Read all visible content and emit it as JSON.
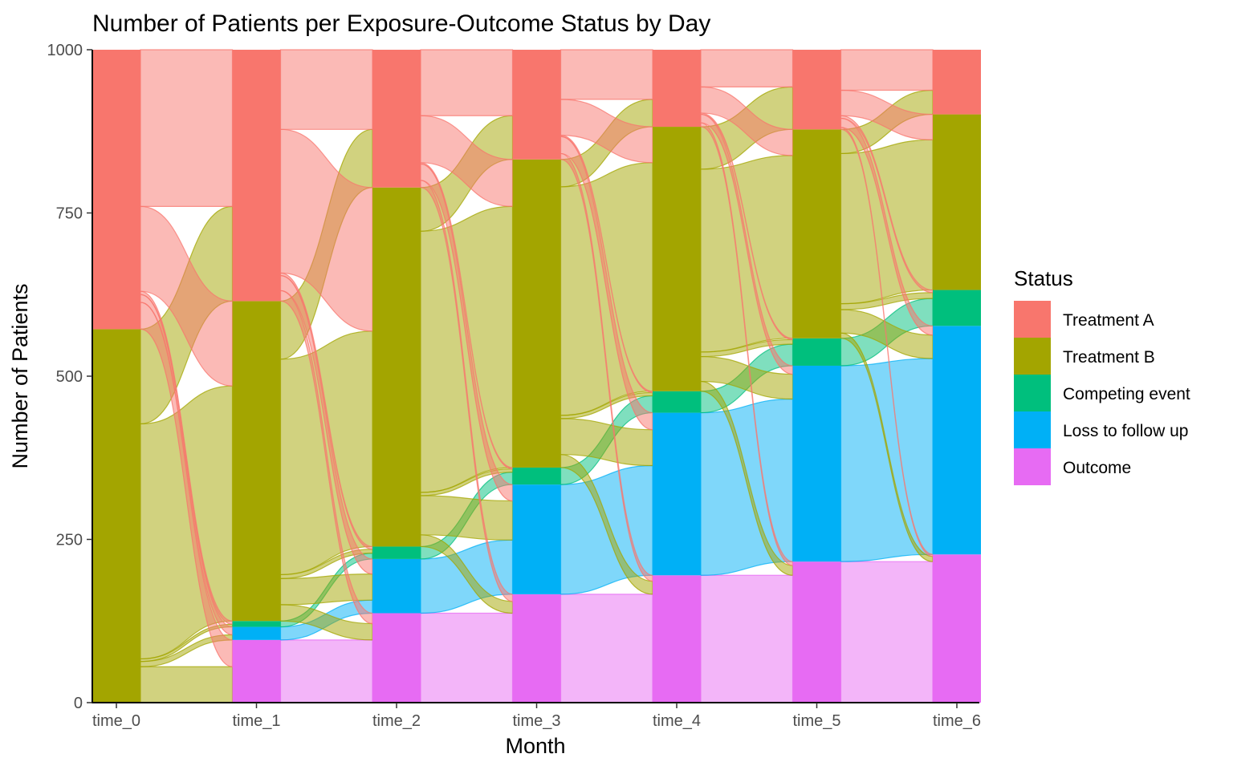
{
  "chart_data": {
    "type": "alluvial",
    "title": "Number of Patients per Exposure-Outcome Status by Day",
    "xlabel": "Month",
    "ylabel": "Number of Patients",
    "ylim": [
      0,
      1000
    ],
    "yticks": [
      "0",
      "250",
      "500",
      "750",
      "1000"
    ],
    "categories": [
      "time_0",
      "time_1",
      "time_2",
      "time_3",
      "time_4",
      "time_5",
      "time_6"
    ],
    "legend": {
      "title": "Status",
      "position": "right",
      "entries": [
        "Treatment A",
        "Treatment B",
        "Competing event",
        "Loss to follow up",
        "Outcome"
      ]
    },
    "colors": {
      "Treatment A": "#F8766D",
      "Treatment B": "#A3A500",
      "Competing event": "#00BF7D",
      "Loss to follow up": "#00B0F6",
      "Outcome": "#E76BF3"
    },
    "series": [
      {
        "name": "Outcome",
        "values": [
          0,
          96,
          137,
          166,
          195,
          216,
          227
        ]
      },
      {
        "name": "Loss to follow up",
        "values": [
          0,
          20,
          83,
          168,
          249,
          300,
          350
        ]
      },
      {
        "name": "Competing event",
        "values": [
          0,
          9,
          19,
          26,
          33,
          42,
          55
        ]
      },
      {
        "name": "Treatment B",
        "values": [
          572,
          490,
          550,
          472,
          405,
          320,
          269
        ]
      },
      {
        "name": "Treatment A",
        "values": [
          428,
          385,
          211,
          168,
          118,
          122,
          99
        ]
      }
    ],
    "flows": [
      {
        "from": "time_0",
        "to": "time_1",
        "pairs": [
          [
            "Treatment B",
            "Outcome",
            55
          ],
          [
            "Treatment B",
            "Loss to follow up",
            8
          ],
          [
            "Treatment B",
            "Competing event",
            4
          ],
          [
            "Treatment B",
            "Treatment B",
            360
          ],
          [
            "Treatment B",
            "Treatment A",
            145
          ],
          [
            "Treatment A",
            "Outcome",
            41
          ],
          [
            "Treatment A",
            "Loss to follow up",
            12
          ],
          [
            "Treatment A",
            "Competing event",
            5
          ],
          [
            "Treatment A",
            "Treatment B",
            130
          ],
          [
            "Treatment A",
            "Treatment A",
            240
          ]
        ]
      },
      {
        "from": "time_1",
        "to": "time_2",
        "pairs": [
          [
            "Outcome",
            "Outcome",
            96
          ],
          [
            "Loss to follow up",
            "Loss to follow up",
            20
          ],
          [
            "Competing event",
            "Competing event",
            9
          ],
          [
            "Treatment B",
            "Outcome",
            25
          ],
          [
            "Treatment B",
            "Loss to follow up",
            40
          ],
          [
            "Treatment B",
            "Competing event",
            6
          ],
          [
            "Treatment B",
            "Treatment B",
            330
          ],
          [
            "Treatment B",
            "Treatment A",
            89
          ],
          [
            "Treatment A",
            "Outcome",
            16
          ],
          [
            "Treatment A",
            "Loss to follow up",
            23
          ],
          [
            "Treatment A",
            "Competing event",
            4
          ],
          [
            "Treatment A",
            "Treatment B",
            220
          ],
          [
            "Treatment A",
            "Treatment A",
            122
          ]
        ]
      },
      {
        "from": "time_2",
        "to": "time_3",
        "pairs": [
          [
            "Outcome",
            "Outcome",
            137
          ],
          [
            "Loss to follow up",
            "Loss to follow up",
            83
          ],
          [
            "Competing event",
            "Competing event",
            19
          ],
          [
            "Treatment B",
            "Outcome",
            18
          ],
          [
            "Treatment B",
            "Loss to follow up",
            60
          ],
          [
            "Treatment B",
            "Competing event",
            5
          ],
          [
            "Treatment B",
            "Treatment B",
            400
          ],
          [
            "Treatment B",
            "Treatment A",
            67
          ],
          [
            "Treatment A",
            "Outcome",
            11
          ],
          [
            "Treatment A",
            "Loss to follow up",
            25
          ],
          [
            "Treatment A",
            "Competing event",
            2
          ],
          [
            "Treatment A",
            "Treatment B",
            72
          ],
          [
            "Treatment A",
            "Treatment A",
            101
          ]
        ]
      },
      {
        "from": "time_3",
        "to": "time_4",
        "pairs": [
          [
            "Outcome",
            "Outcome",
            166
          ],
          [
            "Loss to follow up",
            "Loss to follow up",
            168
          ],
          [
            "Competing event",
            "Competing event",
            26
          ],
          [
            "Treatment B",
            "Outcome",
            20
          ],
          [
            "Treatment B",
            "Loss to follow up",
            55
          ],
          [
            "Treatment B",
            "Competing event",
            5
          ],
          [
            "Treatment B",
            "Treatment B",
            350
          ],
          [
            "Treatment B",
            "Treatment A",
            42
          ],
          [
            "Treatment A",
            "Outcome",
            9
          ],
          [
            "Treatment A",
            "Loss to follow up",
            26
          ],
          [
            "Treatment A",
            "Competing event",
            2
          ],
          [
            "Treatment A",
            "Treatment B",
            55
          ],
          [
            "Treatment A",
            "Treatment A",
            76
          ]
        ]
      },
      {
        "from": "time_4",
        "to": "time_5",
        "pairs": [
          [
            "Outcome",
            "Outcome",
            195
          ],
          [
            "Loss to follow up",
            "Loss to follow up",
            249
          ],
          [
            "Competing event",
            "Competing event",
            33
          ],
          [
            "Treatment B",
            "Outcome",
            15
          ],
          [
            "Treatment B",
            "Loss to follow up",
            38
          ],
          [
            "Treatment B",
            "Competing event",
            7
          ],
          [
            "Treatment B",
            "Treatment B",
            280
          ],
          [
            "Treatment B",
            "Treatment A",
            65
          ],
          [
            "Treatment A",
            "Outcome",
            6
          ],
          [
            "Treatment A",
            "Loss to follow up",
            13
          ],
          [
            "Treatment A",
            "Competing event",
            2
          ],
          [
            "Treatment A",
            "Treatment B",
            40
          ],
          [
            "Treatment A",
            "Treatment A",
            57
          ]
        ]
      },
      {
        "from": "time_5",
        "to": "time_6",
        "pairs": [
          [
            "Outcome",
            "Outcome",
            216
          ],
          [
            "Loss to follow up",
            "Loss to follow up",
            300
          ],
          [
            "Competing event",
            "Competing event",
            42
          ],
          [
            "Treatment B",
            "Outcome",
            8
          ],
          [
            "Treatment B",
            "Loss to follow up",
            36
          ],
          [
            "Treatment B",
            "Competing event",
            9
          ],
          [
            "Treatment B",
            "Treatment B",
            230
          ],
          [
            "Treatment B",
            "Treatment A",
            37
          ],
          [
            "Treatment A",
            "Outcome",
            3
          ],
          [
            "Treatment A",
            "Loss to follow up",
            14
          ],
          [
            "Treatment A",
            "Competing event",
            4
          ],
          [
            "Treatment A",
            "Treatment B",
            39
          ],
          [
            "Treatment A",
            "Treatment A",
            62
          ]
        ]
      }
    ]
  }
}
